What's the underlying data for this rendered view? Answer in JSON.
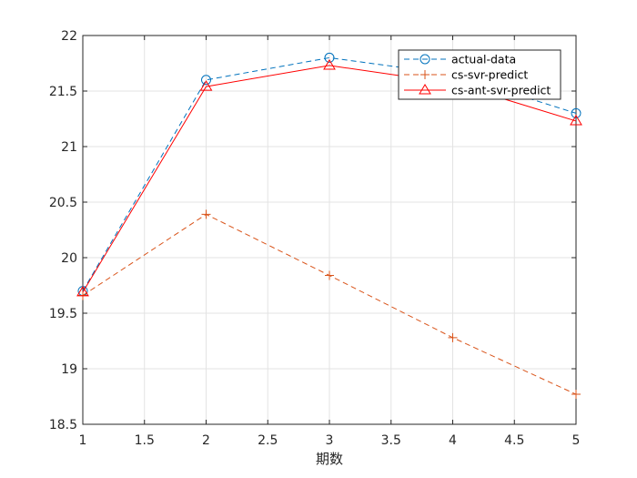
{
  "chart_data": {
    "type": "line",
    "title": "",
    "xlabel": "期数",
    "ylabel": "",
    "x": [
      1,
      2,
      3,
      4,
      5
    ],
    "xlim": [
      1,
      5
    ],
    "ylim": [
      18.5,
      22
    ],
    "xticks": [
      1,
      1.5,
      2,
      2.5,
      3,
      3.5,
      4,
      4.5,
      5
    ],
    "xtick_labels": [
      "1",
      "1.5",
      "2",
      "2.5",
      "3",
      "3.5",
      "4",
      "4.5",
      "5"
    ],
    "yticks": [
      18.5,
      19,
      19.5,
      20,
      20.5,
      21,
      21.5,
      22
    ],
    "ytick_labels": [
      "18.5",
      "19",
      "19.5",
      "20",
      "20.5",
      "21",
      "21.5",
      "22"
    ],
    "grid": true,
    "legend_position": "top-right",
    "series": [
      {
        "name": "actual-data",
        "values": [
          19.7,
          21.6,
          21.8,
          21.65,
          21.3
        ],
        "color": "#0072BD",
        "dash": "dashed",
        "marker": "circle"
      },
      {
        "name": "cs-svr-predict",
        "values": [
          19.66,
          20.39,
          19.84,
          19.28,
          18.77
        ],
        "color": "#D95319",
        "dash": "dashed",
        "marker": "plus"
      },
      {
        "name": "cs-ant-svr-predict",
        "values": [
          19.69,
          21.54,
          21.73,
          21.57,
          21.23
        ],
        "color": "#FF0000",
        "dash": "solid",
        "marker": "triangle"
      }
    ]
  }
}
